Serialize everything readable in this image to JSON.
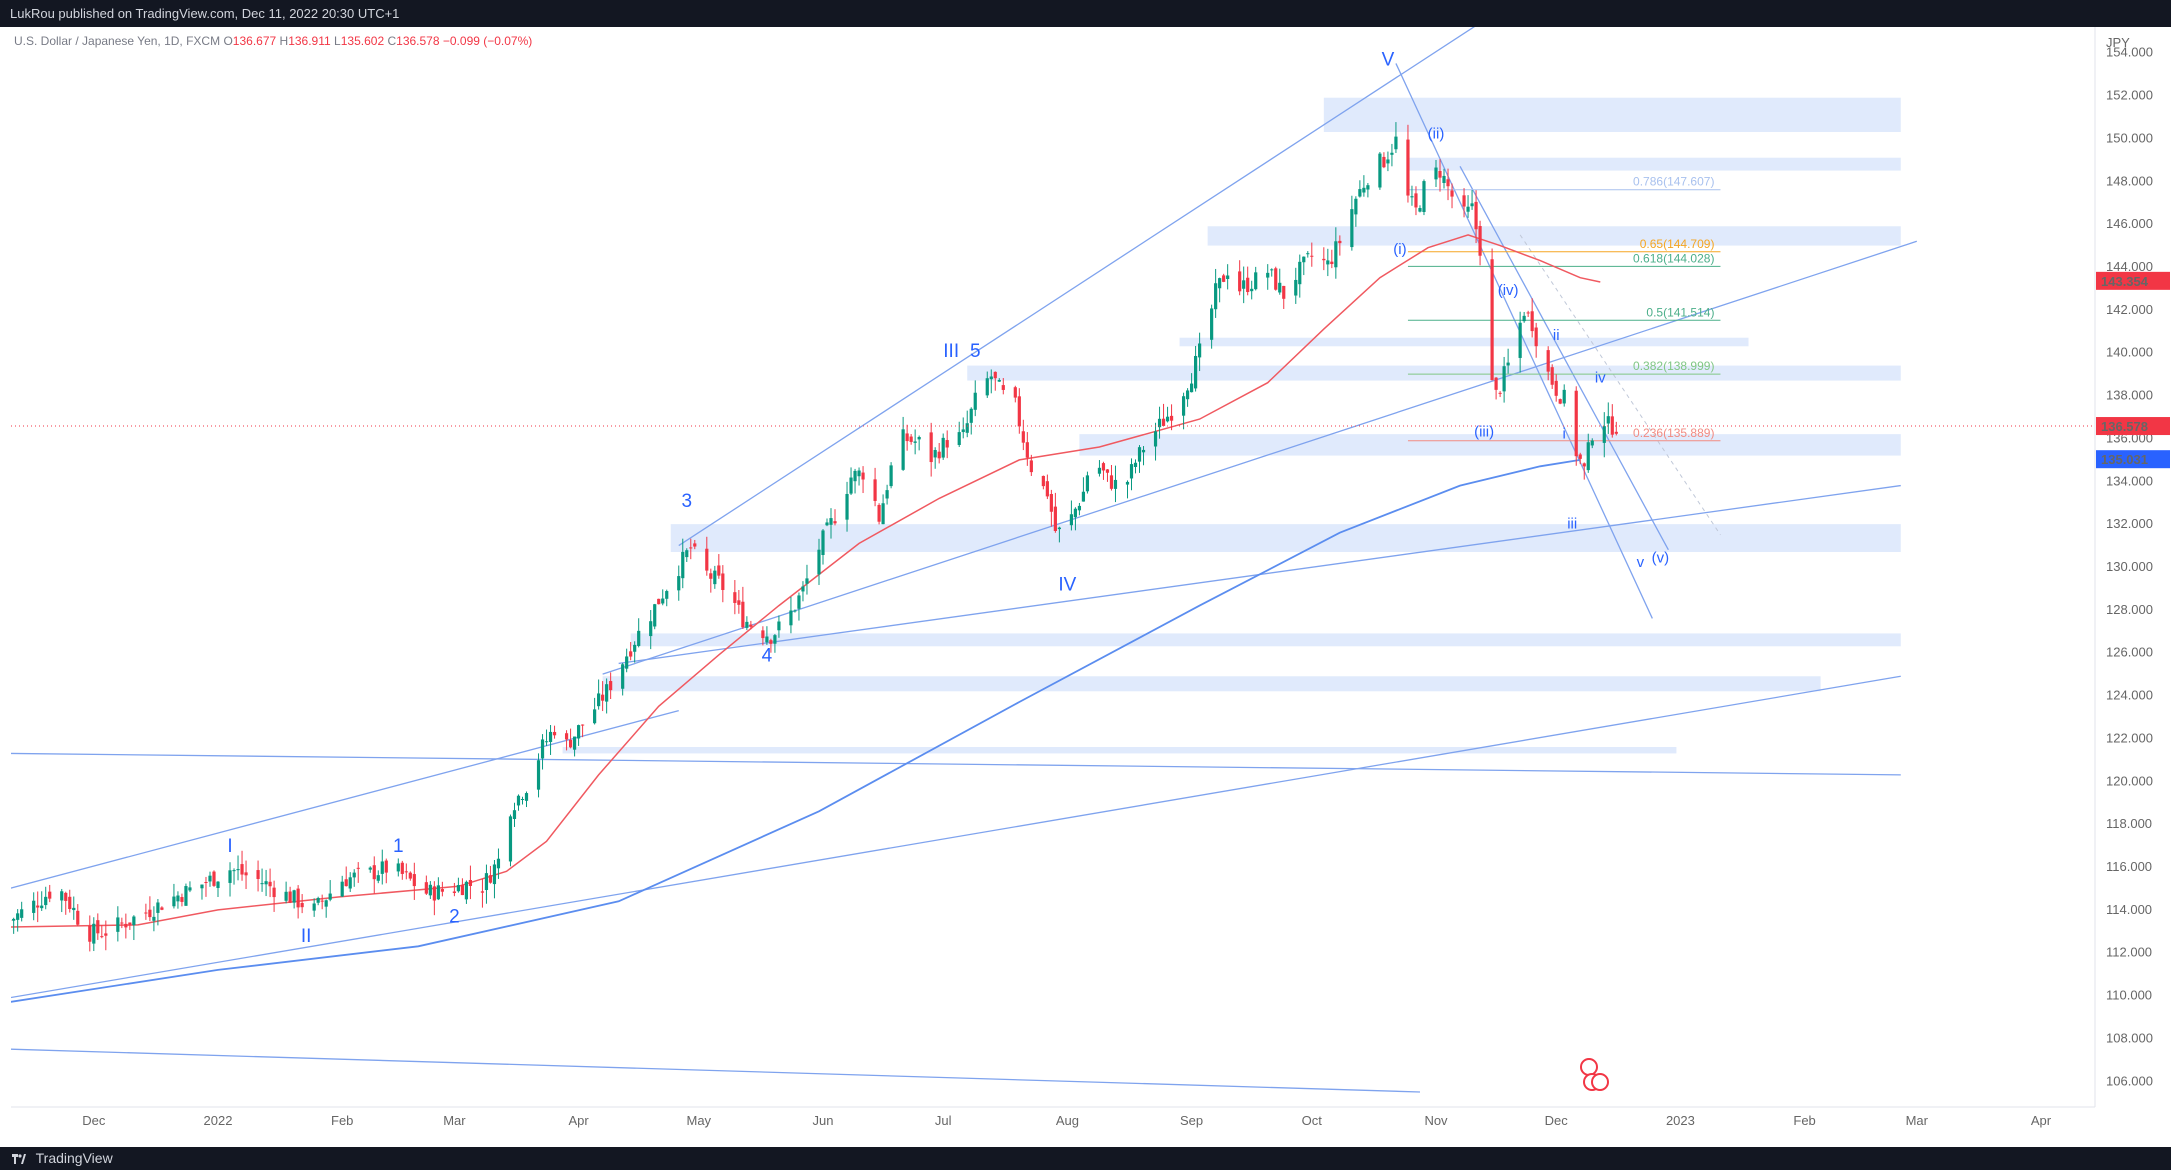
{
  "header": {
    "published": "LukRou published on TradingView.com, Dec 11, 2022 20:30 UTC+1"
  },
  "legend": {
    "symbol": "U.S. Dollar / Japanese Yen, 1D, FXCM",
    "o_label": "O",
    "o": "136.677",
    "h_label": "H",
    "h": "136.911",
    "l_label": "L",
    "l": "135.602",
    "c_label": "C",
    "c": "136.578",
    "change": "−0.099 (−0.07%)"
  },
  "footer": {
    "brand": "TradingView"
  },
  "colors": {
    "up": "#089981",
    "down": "#f23645",
    "zone": "#dbe6fb",
    "trend": "#7fa3ee",
    "ma50": "#f05960",
    "ma200": "#5b8def",
    "wave": "#2962ff"
  },
  "chart_data": {
    "type": "candlestick",
    "currency": "JPY",
    "y_ticks": [
      106,
      108,
      110,
      112,
      114,
      116,
      118,
      120,
      122,
      124,
      126,
      128,
      130,
      132,
      134,
      136,
      138,
      140,
      142,
      144,
      146,
      148,
      150,
      152,
      154
    ],
    "y_tick_labels": [
      "106.000",
      "108.000",
      "110.000",
      "112.000",
      "114.000",
      "116.000",
      "118.000",
      "120.000",
      "122.000",
      "124.000",
      "126.000",
      "128.000",
      "130.000",
      "132.000",
      "134.000",
      "136.000",
      "138.000",
      "140.000",
      "142.000",
      "144.000",
      "146.000",
      "148.000",
      "150.000",
      "152.000",
      "154.000"
    ],
    "ylim": [
      104.8,
      155.2
    ],
    "x_ticks": [
      {
        "label": "Dec",
        "day": -31
      },
      {
        "label": "2022",
        "day": 0
      },
      {
        "label": "Feb",
        "day": 31
      },
      {
        "label": "Mar",
        "day": 59
      },
      {
        "label": "Apr",
        "day": 90
      },
      {
        "label": "May",
        "day": 120
      },
      {
        "label": "Jun",
        "day": 151
      },
      {
        "label": "Jul",
        "day": 181
      },
      {
        "label": "Aug",
        "day": 212
      },
      {
        "label": "Sep",
        "day": 243
      },
      {
        "label": "Oct",
        "day": 273
      },
      {
        "label": "Nov",
        "day": 304
      },
      {
        "label": "Dec",
        "day": 334
      },
      {
        "label": "2023",
        "day": 365
      },
      {
        "label": "Feb",
        "day": 396
      },
      {
        "label": "Mar",
        "day": 424
      },
      {
        "label": "Apr",
        "day": 455
      }
    ],
    "price_labels": [
      {
        "value": "143.354",
        "price": 143.354,
        "bg": "#f23645"
      },
      {
        "value": "136.578",
        "price": 136.578,
        "bg": "#f23645"
      },
      {
        "value": "135.031",
        "price": 135.031,
        "bg": "#2962ff"
      }
    ],
    "last_price": 136.578,
    "close_path": [
      [
        -52,
        113.5
      ],
      [
        -45,
        114.4
      ],
      [
        -40,
        115.1
      ],
      [
        -36,
        114.0
      ],
      [
        -33,
        112.9
      ],
      [
        -28,
        113.0
      ],
      [
        -20,
        113.7
      ],
      [
        -12,
        114.5
      ],
      [
        -4,
        115.2
      ],
      [
        3,
        115.9
      ],
      [
        10,
        115.4
      ],
      [
        17,
        114.7
      ],
      [
        24,
        114.0
      ],
      [
        27,
        114.6
      ],
      [
        31,
        115.4
      ],
      [
        38,
        115.7
      ],
      [
        43,
        116.0
      ],
      [
        47,
        115.5
      ],
      [
        52,
        114.8
      ],
      [
        57,
        114.9
      ],
      [
        62,
        115.2
      ],
      [
        66,
        115.1
      ],
      [
        70,
        116.3
      ],
      [
        73,
        118.8
      ],
      [
        77,
        119.8
      ],
      [
        81,
        121.6
      ],
      [
        84,
        122.5
      ],
      [
        87,
        121.7
      ],
      [
        92,
        122.9
      ],
      [
        97,
        124.2
      ],
      [
        101,
        125.6
      ],
      [
        104,
        126.6
      ],
      [
        108,
        127.8
      ],
      [
        112,
        129.1
      ],
      [
        115,
        130.0
      ],
      [
        118,
        130.9
      ],
      [
        121,
        129.8
      ],
      [
        125,
        129.3
      ],
      [
        128,
        128.6
      ],
      [
        131,
        127.6
      ],
      [
        134,
        127.2
      ],
      [
        138,
        126.8
      ],
      [
        142,
        127.5
      ],
      [
        146,
        128.9
      ],
      [
        150,
        130.9
      ],
      [
        154,
        132.4
      ],
      [
        158,
        134.2
      ],
      [
        162,
        134.5
      ],
      [
        165,
        132.3
      ],
      [
        168,
        134.6
      ],
      [
        171,
        136.0
      ],
      [
        175,
        135.8
      ],
      [
        178,
        135.1
      ],
      [
        182,
        135.9
      ],
      [
        186,
        136.1
      ],
      [
        190,
        138.3
      ],
      [
        193,
        138.9
      ],
      [
        196,
        138.0
      ],
      [
        199,
        137.5
      ],
      [
        201,
        136.0
      ],
      [
        204,
        134.0
      ],
      [
        207,
        133.5
      ],
      [
        209,
        131.7
      ],
      [
        211,
        131.6
      ],
      [
        213,
        132.3
      ],
      [
        216,
        133.5
      ],
      [
        218,
        135.2
      ],
      [
        222,
        134.1
      ],
      [
        226,
        133.6
      ],
      [
        229,
        134.9
      ],
      [
        231,
        135.6
      ],
      [
        235,
        136.6
      ],
      [
        239,
        137.5
      ],
      [
        243,
        139.0
      ],
      [
        246,
        140.5
      ],
      [
        249,
        142.8
      ],
      [
        252,
        143.9
      ],
      [
        255,
        143.0
      ],
      [
        259,
        143.4
      ],
      [
        262,
        143.8
      ],
      [
        266,
        142.7
      ],
      [
        269,
        143.6
      ],
      [
        273,
        144.5
      ],
      [
        277,
        144.1
      ],
      [
        280,
        145.2
      ],
      [
        284,
        147.2
      ],
      [
        288,
        148.6
      ],
      [
        291,
        149.0
      ],
      [
        294,
        149.9
      ],
      [
        296,
        147.5
      ],
      [
        299,
        146.6
      ],
      [
        302,
        148.2
      ],
      [
        305,
        148.5
      ],
      [
        308,
        147.3
      ],
      [
        311,
        146.4
      ],
      [
        313,
        146.7
      ],
      [
        315,
        144.9
      ],
      [
        317,
        139.0
      ],
      [
        319,
        138.0
      ],
      [
        322,
        139.4
      ],
      [
        326,
        142.0
      ],
      [
        328,
        141.4
      ],
      [
        331,
        139.4
      ],
      [
        334,
        138.3
      ],
      [
        337,
        137.6
      ],
      [
        339,
        135.4
      ],
      [
        341,
        134.5
      ],
      [
        343,
        136.3
      ],
      [
        345,
        137.1
      ],
      [
        347,
        136.6
      ],
      [
        349,
        136.6
      ]
    ],
    "ma50": [
      [
        -52,
        113.2
      ],
      [
        -20,
        113.3
      ],
      [
        0,
        114.0
      ],
      [
        30,
        114.6
      ],
      [
        60,
        115.1
      ],
      [
        72,
        115.8
      ],
      [
        82,
        117.2
      ],
      [
        95,
        120.3
      ],
      [
        110,
        123.5
      ],
      [
        125,
        125.9
      ],
      [
        140,
        128.2
      ],
      [
        160,
        131.1
      ],
      [
        180,
        133.2
      ],
      [
        200,
        135.0
      ],
      [
        220,
        135.6
      ],
      [
        245,
        136.9
      ],
      [
        262,
        138.6
      ],
      [
        276,
        141.1
      ],
      [
        290,
        143.5
      ],
      [
        302,
        144.9
      ],
      [
        312,
        145.5
      ],
      [
        320,
        145.0
      ],
      [
        330,
        144.3
      ],
      [
        340,
        143.5
      ],
      [
        345,
        143.3
      ]
    ],
    "ma200": [
      [
        -52,
        109.7
      ],
      [
        0,
        111.2
      ],
      [
        50,
        112.3
      ],
      [
        100,
        114.4
      ],
      [
        150,
        118.6
      ],
      [
        200,
        123.7
      ],
      [
        245,
        128.2
      ],
      [
        280,
        131.6
      ],
      [
        310,
        133.8
      ],
      [
        330,
        134.7
      ],
      [
        340,
        135.0
      ]
    ],
    "zones": [
      {
        "top": 151.9,
        "bottom": 150.3,
        "from": 276,
        "to": 420
      },
      {
        "top": 149.1,
        "bottom": 148.5,
        "from": 297,
        "to": 420
      },
      {
        "top": 145.9,
        "bottom": 145.0,
        "from": 247,
        "to": 420
      },
      {
        "top": 140.7,
        "bottom": 140.3,
        "from": 240,
        "to": 382
      },
      {
        "top": 139.4,
        "bottom": 138.7,
        "from": 187,
        "to": 420
      },
      {
        "top": 136.2,
        "bottom": 135.2,
        "from": 215,
        "to": 420
      },
      {
        "top": 132.0,
        "bottom": 130.7,
        "from": 113,
        "to": 420
      },
      {
        "top": 126.9,
        "bottom": 126.3,
        "from": 103,
        "to": 420
      },
      {
        "top": 124.9,
        "bottom": 124.2,
        "from": 96,
        "to": 400
      },
      {
        "top": 121.6,
        "bottom": 121.3,
        "from": 86,
        "to": 364
      }
    ],
    "trendlines": [
      {
        "from": [
          -52,
          115.0
        ],
        "to": [
          115,
          123.3
        ]
      },
      {
        "from": [
          115,
          131.0
        ],
        "to": [
          320,
          156.0
        ]
      },
      {
        "from": [
          96,
          125.0
        ],
        "to": [
          424,
          145.2
        ]
      },
      {
        "from": [
          -52,
          121.3
        ],
        "to": [
          420,
          120.3
        ]
      },
      {
        "from": [
          -52,
          109.9
        ],
        "to": [
          420,
          124.9
        ]
      },
      {
        "from": [
          -52,
          107.5
        ],
        "to": [
          300,
          105.5
        ]
      },
      {
        "from": [
          100,
          125.5
        ],
        "to": [
          420,
          133.8
        ]
      },
      {
        "from": [
          294,
          153.5
        ],
        "to": [
          358,
          127.6
        ]
      },
      {
        "from": [
          310,
          148.7
        ],
        "to": [
          362,
          130.8
        ]
      }
    ],
    "fib_levels": [
      {
        "label": "0.786(147.607)",
        "price": 147.607,
        "color": "#a8c1ee"
      },
      {
        "label": "0.65(144.709)",
        "price": 144.709,
        "color": "#f5a623"
      },
      {
        "label": "0.618(144.028)",
        "price": 144.028,
        "color": "#4caf8a"
      },
      {
        "label": "0.5(141.514)",
        "price": 141.514,
        "color": "#4caf8a"
      },
      {
        "label": "0.382(138.999)",
        "price": 138.999,
        "color": "#81c784"
      },
      {
        "label": "0.236(135.889)",
        "price": 135.889,
        "color": "#f28b82"
      }
    ],
    "wave_labels": [
      {
        "t": "I",
        "day": 3,
        "price": 116.7,
        "size": "big"
      },
      {
        "t": "II",
        "day": 22,
        "price": 112.5,
        "size": "big"
      },
      {
        "t": "1",
        "day": 45,
        "price": 116.7,
        "size": "big"
      },
      {
        "t": "2",
        "day": 59,
        "price": 113.4,
        "size": "big"
      },
      {
        "t": "3",
        "day": 117,
        "price": 132.8,
        "size": "big"
      },
      {
        "t": "4",
        "day": 137,
        "price": 125.6,
        "size": "big"
      },
      {
        "t": "III",
        "day": 183,
        "price": 139.8,
        "size": "big"
      },
      {
        "t": "5",
        "day": 189,
        "price": 139.8,
        "size": "big"
      },
      {
        "t": "IV",
        "day": 212,
        "price": 128.9,
        "size": "big"
      },
      {
        "t": "V",
        "day": 292,
        "price": 153.4,
        "size": "big"
      },
      {
        "t": "(ii)",
        "day": 304,
        "price": 150.0,
        "size": "small"
      },
      {
        "t": "(i)",
        "day": 295,
        "price": 144.6,
        "size": "small"
      },
      {
        "t": "(iv)",
        "day": 322,
        "price": 142.7,
        "size": "small"
      },
      {
        "t": "ii",
        "day": 334,
        "price": 140.6,
        "size": "small"
      },
      {
        "t": "iv",
        "day": 345,
        "price": 138.6,
        "size": "small"
      },
      {
        "t": "(iii)",
        "day": 316,
        "price": 136.1,
        "size": "small"
      },
      {
        "t": "i",
        "day": 336,
        "price": 136.0,
        "size": "small"
      },
      {
        "t": "iii",
        "day": 338,
        "price": 131.8,
        "size": "small"
      },
      {
        "t": "v",
        "day": 355,
        "price": 130.0,
        "size": "small"
      },
      {
        "t": "(v)",
        "day": 360,
        "price": 130.2,
        "size": "small"
      }
    ]
  }
}
